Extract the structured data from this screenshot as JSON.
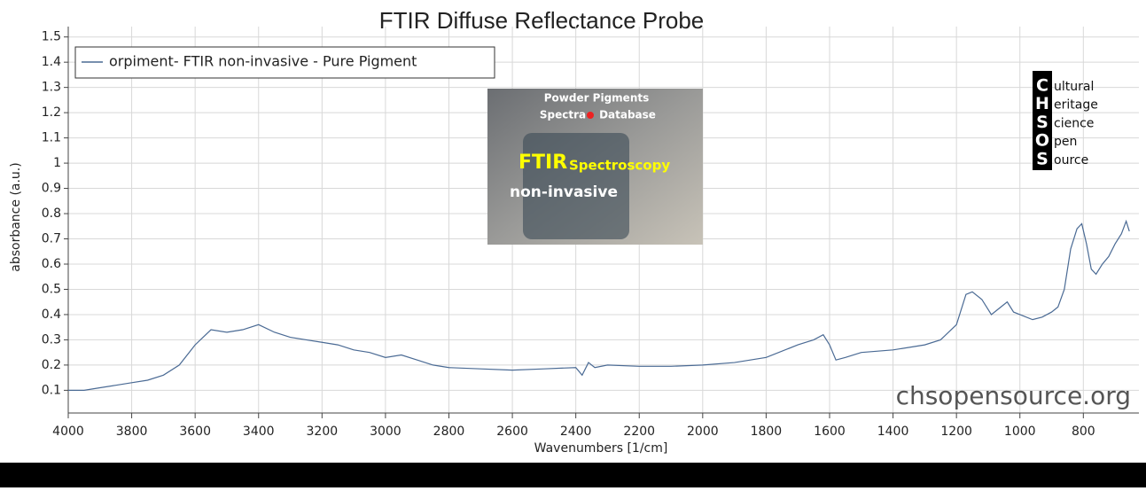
{
  "chart_data": {
    "type": "line",
    "title": "FTIR Diffuse Reflectance Probe",
    "x_label": "Wavenumbers [1/cm]",
    "y_label": "absorbance (a.u.)",
    "x": [
      4000,
      3950,
      3900,
      3850,
      3800,
      3750,
      3700,
      3650,
      3600,
      3550,
      3500,
      3450,
      3400,
      3350,
      3300,
      3250,
      3200,
      3150,
      3100,
      3050,
      3000,
      2950,
      2900,
      2850,
      2800,
      2700,
      2600,
      2500,
      2400,
      2380,
      2360,
      2340,
      2300,
      2200,
      2100,
      2000,
      1900,
      1800,
      1700,
      1650,
      1620,
      1600,
      1580,
      1550,
      1500,
      1400,
      1300,
      1250,
      1200,
      1170,
      1150,
      1120,
      1090,
      1060,
      1040,
      1020,
      1000,
      960,
      930,
      900,
      880,
      860,
      840,
      820,
      805,
      790,
      775,
      760,
      740,
      720,
      700,
      680,
      665,
      655
    ],
    "series": [
      {
        "name": "orpiment- FTIR non-invasive - Pure Pigment",
        "color": "#4a6a94",
        "values": [
          0.1,
          0.1,
          0.11,
          0.12,
          0.13,
          0.14,
          0.16,
          0.2,
          0.28,
          0.34,
          0.33,
          0.34,
          0.36,
          0.33,
          0.31,
          0.3,
          0.29,
          0.28,
          0.26,
          0.25,
          0.23,
          0.24,
          0.22,
          0.2,
          0.19,
          0.185,
          0.18,
          0.185,
          0.19,
          0.16,
          0.21,
          0.19,
          0.2,
          0.195,
          0.195,
          0.2,
          0.21,
          0.23,
          0.28,
          0.3,
          0.32,
          0.28,
          0.22,
          0.23,
          0.25,
          0.26,
          0.28,
          0.3,
          0.36,
          0.48,
          0.49,
          0.46,
          0.4,
          0.43,
          0.45,
          0.41,
          0.4,
          0.38,
          0.39,
          0.41,
          0.43,
          0.5,
          0.66,
          0.74,
          0.76,
          0.68,
          0.58,
          0.56,
          0.6,
          0.63,
          0.68,
          0.72,
          0.77,
          0.73
        ]
      }
    ],
    "xlim": [
      4000,
      650
    ],
    "xticks": [
      4000,
      3800,
      3600,
      3400,
      3200,
      3000,
      2800,
      2600,
      2400,
      2200,
      2000,
      1800,
      1600,
      1400,
      1200,
      1000,
      800
    ],
    "ylim": [
      0.01,
      1.52
    ],
    "yticks": [
      0.1,
      0.2,
      0.3,
      0.4,
      0.5,
      0.6,
      0.7,
      0.8,
      0.9,
      1,
      1.1,
      1.2,
      1.3,
      1.4,
      1.5
    ],
    "grid": true,
    "legend": "top-left",
    "watermark": "chsopensource.org",
    "inset_lines": [
      "Powder Pigments",
      "Spectra",
      "Database",
      "FTIR",
      "Spectroscopy",
      "non-invasive"
    ],
    "logo_letters": [
      "C",
      "H",
      "S",
      "O",
      "S"
    ],
    "logo_words": [
      "ultural",
      "eritage",
      "cience",
      "pen",
      "ource"
    ]
  }
}
